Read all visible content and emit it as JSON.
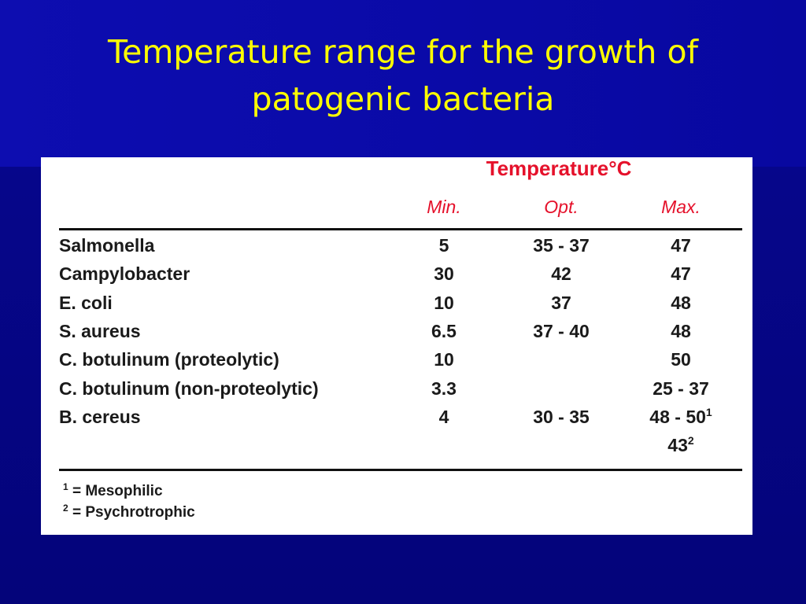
{
  "title": "Temperature range for the growth of patogenic bacteria",
  "table": {
    "group_header": "Temperature°C",
    "columns": [
      "Min.",
      "Opt.",
      "Max."
    ],
    "rows": [
      [
        "Salmonella",
        "5",
        "35 - 37",
        "47"
      ],
      [
        "Campylobacter",
        "30",
        "42",
        "47"
      ],
      [
        "E. coli",
        "10",
        "37",
        "48"
      ],
      [
        "S. aureus",
        "6.5",
        "37 - 40",
        "48"
      ],
      [
        "C. botulinum (proteolytic)",
        "10",
        null,
        "50"
      ],
      [
        "C. botulinum (non-proteolytic)",
        "3.3",
        null,
        "25 - 37"
      ],
      [
        "B. cereus",
        "4",
        "30 - 35",
        {
          "text": "48 - 50",
          "sup": "1"
        }
      ],
      [
        null,
        null,
        null,
        {
          "text": "43",
          "sup": "2"
        }
      ]
    ],
    "footnotes": [
      {
        "mark": "1",
        "text": "= Mesophilic"
      },
      {
        "mark": "2",
        "text": "=  Psychrotrophic"
      }
    ]
  }
}
